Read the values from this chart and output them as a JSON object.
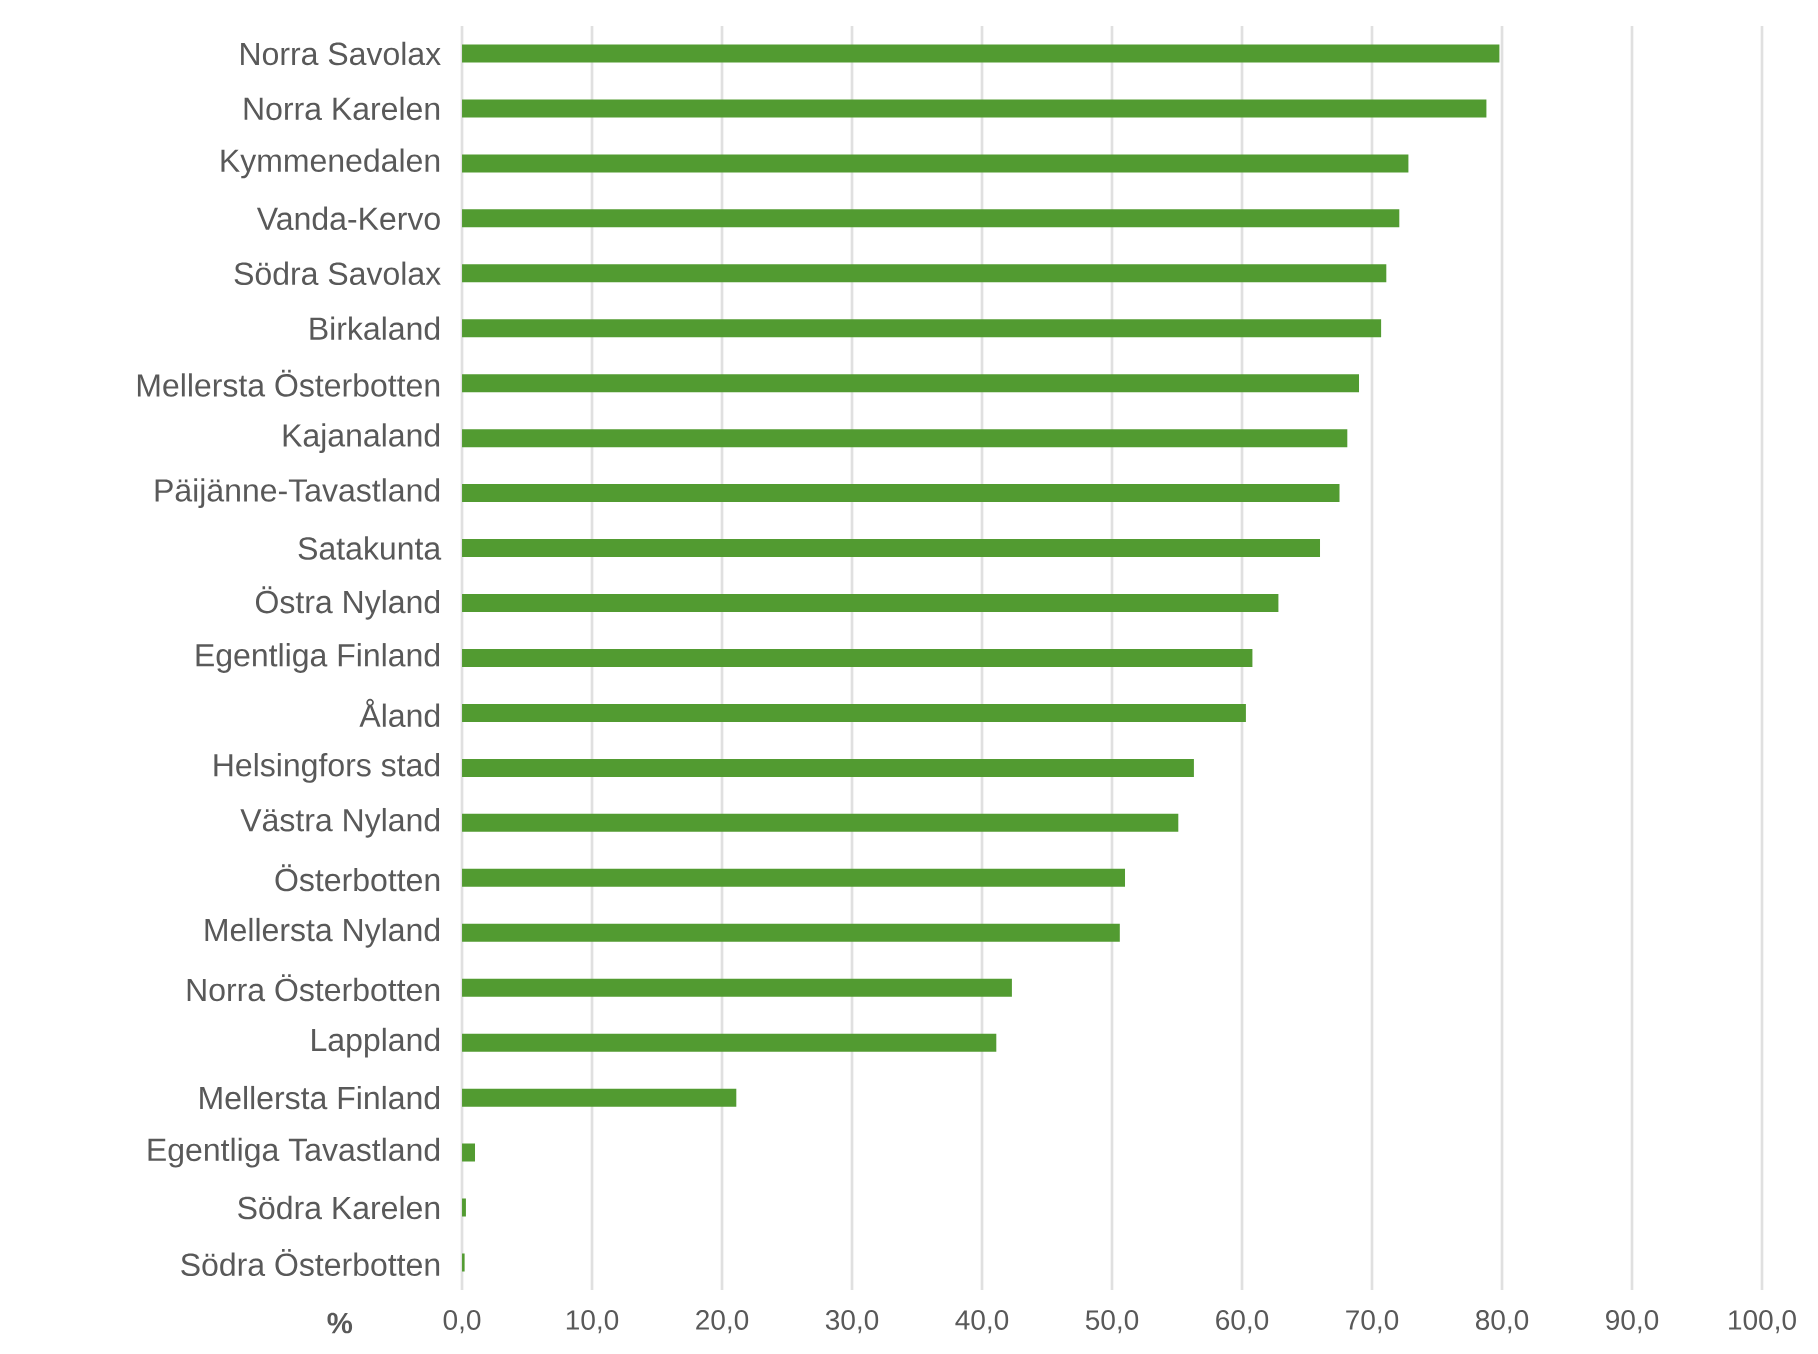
{
  "chart_data": {
    "type": "bar",
    "orientation": "horizontal",
    "xlabel": "%",
    "categories": [
      "Norra Savolax",
      "Norra Karelen",
      "Kymmenedalen",
      "Vanda-Kervo",
      "Södra Savolax",
      "Birkaland",
      "Mellersta Österbotten",
      "Kajanaland",
      "Päijänne-Tavastland",
      "Satakunta",
      "Östra Nyland",
      "Egentliga Finland",
      "Åland",
      "Helsingfors stad",
      "Västra Nyland",
      "Österbotten",
      "Mellersta Nyland",
      "Norra Österbotten",
      "Lappland",
      "Mellersta Finland",
      "Egentliga Tavastland",
      "Södra Karelen",
      "Södra Österbotten"
    ],
    "values": [
      79.8,
      78.8,
      72.8,
      72.1,
      71.1,
      70.7,
      69.0,
      68.1,
      67.5,
      66.0,
      62.8,
      60.8,
      60.3,
      56.3,
      55.1,
      51.0,
      50.6,
      42.3,
      41.1,
      21.1,
      1.0,
      0.3,
      0.2
    ],
    "color": "#529b31",
    "xlim": [
      0,
      100
    ],
    "xticks": [
      {
        "value": 0,
        "label": "0,0"
      },
      {
        "value": 10,
        "label": "10,0"
      },
      {
        "value": 20,
        "label": "20,0"
      },
      {
        "value": 30,
        "label": "30,0"
      },
      {
        "value": 40,
        "label": "40,0"
      },
      {
        "value": 50,
        "label": "50,0"
      },
      {
        "value": 60,
        "label": "60,0"
      },
      {
        "value": 70,
        "label": "70,0"
      },
      {
        "value": 80,
        "label": "80,0"
      },
      {
        "value": 90,
        "label": "90,0"
      },
      {
        "value": 100,
        "label": "100,0"
      }
    ],
    "grid": "x"
  }
}
